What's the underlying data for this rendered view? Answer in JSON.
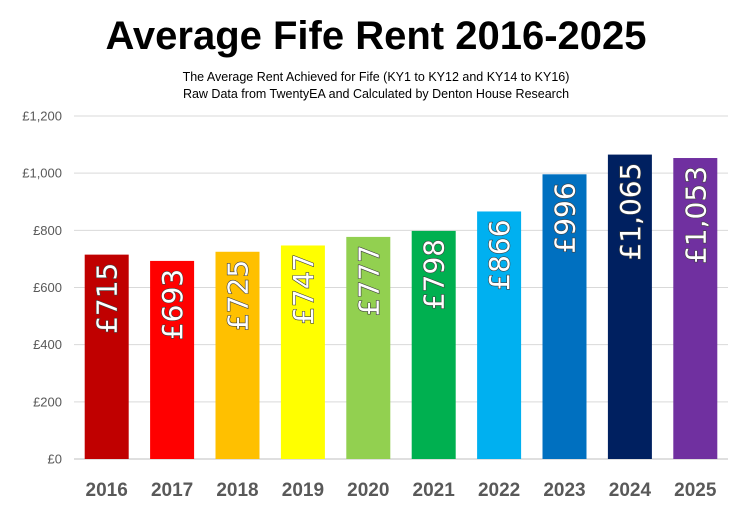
{
  "chart_data": {
    "type": "bar",
    "title": "Average Fife Rent 2016-2025",
    "subtitle_lines": [
      "The Average Rent Achieved for Fife (KY1 to KY12 and KY14 to KY16)",
      "Raw Data from TwentyEA and Calculated by Denton House Research"
    ],
    "categories": [
      "2016",
      "2017",
      "2018",
      "2019",
      "2020",
      "2021",
      "2022",
      "2023",
      "2024",
      "2025"
    ],
    "values": [
      715,
      693,
      725,
      747,
      777,
      798,
      866,
      996,
      1065,
      1053
    ],
    "data_labels": [
      "£715",
      "£693",
      "£725",
      "£747",
      "£777",
      "£798",
      "£866",
      "£996",
      "£1,065",
      "£1,053"
    ],
    "bar_colors": [
      "#C00000",
      "#FF0000",
      "#FFC000",
      "#FFFF00",
      "#92D050",
      "#00B050",
      "#00B0F0",
      "#0070C0",
      "#002060",
      "#7030A0"
    ],
    "ylim": [
      0,
      1200
    ],
    "yticks": [
      0,
      200,
      400,
      600,
      800,
      1000,
      1200
    ],
    "ytick_labels": [
      "£0",
      "£200",
      "£400",
      "£600",
      "£800",
      "£1,000",
      "£1,200"
    ],
    "xlabel": "",
    "ylabel": "",
    "grid": true,
    "legend": "none"
  }
}
